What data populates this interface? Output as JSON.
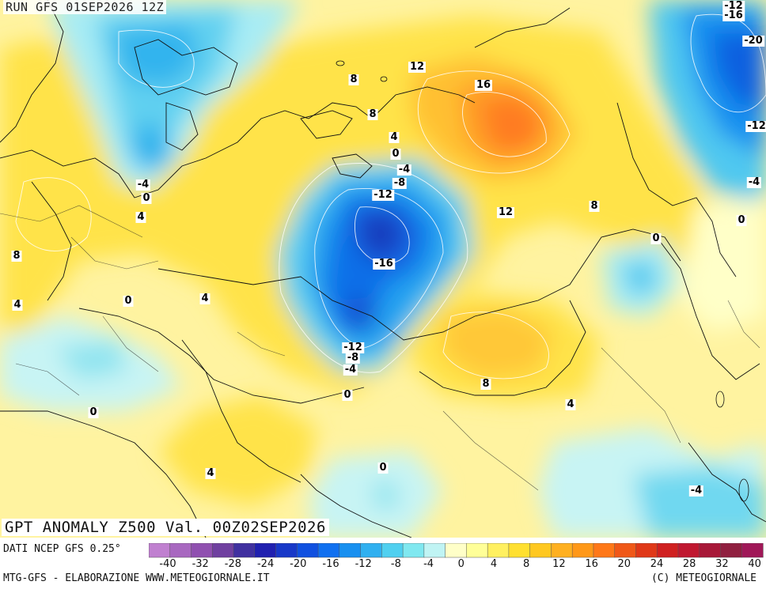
{
  "header": {
    "run": "RUN GFS 01SEP2026 12Z"
  },
  "title": "GPT ANOMALY Z500 Val. 00Z02SEP2026",
  "footer": {
    "source": "DATI NCEP GFS 0.25°",
    "credit": "MTG-GFS - ELABORAZIONE WWW.METEOGIORNALE.IT",
    "copyright": "(C) METEOGIORNALE"
  },
  "colorbar": {
    "ticks": [
      "-40",
      "-32",
      "-28",
      "-24",
      "-20",
      "-16",
      "-12",
      "-8",
      "-4",
      "0",
      "4",
      "8",
      "12",
      "16",
      "20",
      "24",
      "28",
      "32",
      "40"
    ],
    "colors": [
      "#c080d0",
      "#a868c0",
      "#9050b0",
      "#7040a0",
      "#4030a0",
      "#2020b0",
      "#1838c8",
      "#1050e0",
      "#1070f0",
      "#1890f0",
      "#30b0f0",
      "#50d0f0",
      "#80e8f0",
      "#c0f4f4",
      "#ffffc8",
      "#ffff98",
      "#fff060",
      "#ffe030",
      "#ffc820",
      "#ffb020",
      "#ff9818",
      "#ff7818",
      "#f05818",
      "#e03818",
      "#d02020",
      "#c01830",
      "#a81838",
      "#902040",
      "#a01858"
    ]
  },
  "contour_labels": [
    {
      "text": "-12"
    },
    {
      "text": "-16"
    },
    {
      "text": "-20"
    },
    {
      "text": "-12"
    },
    {
      "text": "-4"
    },
    {
      "text": "8"
    },
    {
      "text": "12"
    },
    {
      "text": "16"
    },
    {
      "text": "8"
    },
    {
      "text": "4"
    },
    {
      "text": "0"
    },
    {
      "text": "-4"
    },
    {
      "text": "-8"
    },
    {
      "text": "-12"
    },
    {
      "text": "-16"
    },
    {
      "text": "-12"
    },
    {
      "text": "-8"
    },
    {
      "text": "-4"
    },
    {
      "text": "0"
    },
    {
      "text": "12"
    },
    {
      "text": "8"
    },
    {
      "text": "0"
    },
    {
      "text": "0"
    },
    {
      "text": "-4"
    },
    {
      "text": "0"
    },
    {
      "text": "4"
    },
    {
      "text": "8"
    },
    {
      "text": "4"
    },
    {
      "text": "0"
    },
    {
      "text": "4"
    },
    {
      "text": "0"
    },
    {
      "text": "8"
    },
    {
      "text": "4"
    },
    {
      "text": "0"
    },
    {
      "text": "4"
    },
    {
      "text": "0"
    },
    {
      "text": "-4"
    }
  ]
}
